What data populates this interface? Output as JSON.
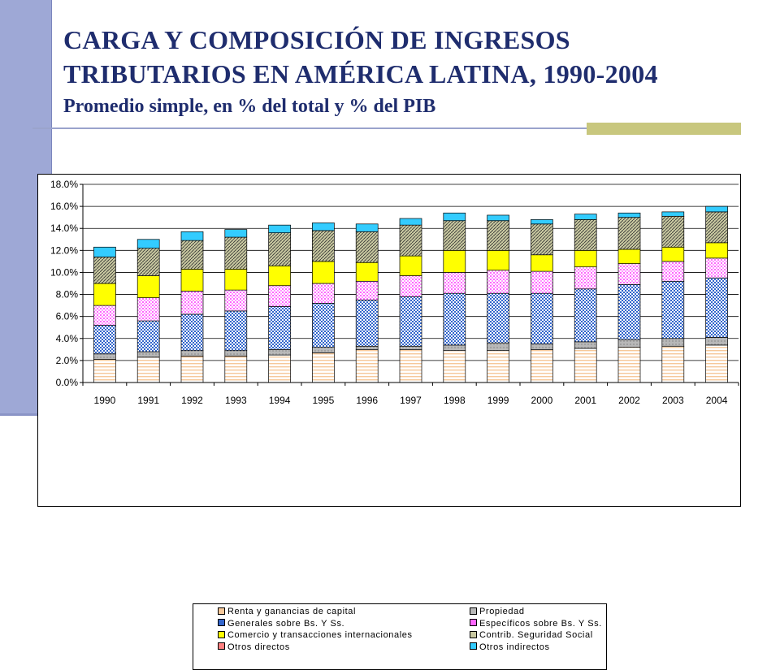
{
  "slide": {
    "title_line1": "CARGA Y COMPOSICIÓN DE INGRESOS",
    "title_line2": "TRIBUTARIOS EN AMÉRICA LATINA, 1990-2004",
    "subtitle": "Promedio simple, en % del total y % del PIB"
  },
  "colors": {
    "left_bar": "#9ea8d6",
    "title": "#1f2d6e",
    "renta": "#f6c89a",
    "propiedad": "#b8b8b8",
    "generales": "#3366cc",
    "especificos": "#ff66ff",
    "comercio": "#ffff00",
    "seguridad": "#c8c8a0",
    "otros_directos": "#ff8080",
    "otros_indirectos": "#33ccff"
  },
  "chart_data": {
    "type": "bar",
    "stacked": true,
    "title": "",
    "xlabel": "",
    "ylabel": "",
    "ylim": [
      0,
      18
    ],
    "y_ticks": [
      "0.0%",
      "2.0%",
      "4.0%",
      "6.0%",
      "8.0%",
      "10.0%",
      "12.0%",
      "14.0%",
      "16.0%",
      "18.0%"
    ],
    "categories": [
      "1990",
      "1991",
      "1992",
      "1993",
      "1994",
      "1995",
      "1996",
      "1997",
      "1998",
      "1999",
      "2000",
      "2001",
      "2002",
      "2003",
      "2004"
    ],
    "legend_position": "bottom",
    "series": [
      {
        "name": "Renta y ganancias de capital",
        "key": "renta",
        "values": [
          2.1,
          2.3,
          2.4,
          2.4,
          2.5,
          2.7,
          3.0,
          3.0,
          2.9,
          2.9,
          3.0,
          3.1,
          3.2,
          3.3,
          3.4
        ]
      },
      {
        "name": "Otros directos",
        "key": "otros_directos",
        "values": [
          0.0,
          0.0,
          0.0,
          0.0,
          0.0,
          0.0,
          0.0,
          0.0,
          0.0,
          0.0,
          0.0,
          0.0,
          0.0,
          0.0,
          0.0
        ]
      },
      {
        "name": "Propiedad",
        "key": "propiedad",
        "values": [
          0.5,
          0.5,
          0.5,
          0.5,
          0.5,
          0.5,
          0.3,
          0.3,
          0.5,
          0.7,
          0.5,
          0.6,
          0.7,
          0.7,
          0.7
        ]
      },
      {
        "name": "Generales sobre Bs. Y Ss.",
        "key": "generales",
        "values": [
          2.6,
          2.8,
          3.3,
          3.6,
          3.9,
          4.0,
          4.2,
          4.5,
          4.7,
          4.5,
          4.6,
          4.8,
          5.0,
          5.2,
          5.4
        ]
      },
      {
        "name": "Específicos sobre Bs. Y Ss.",
        "key": "especificos",
        "values": [
          1.8,
          2.1,
          2.1,
          1.9,
          1.9,
          1.8,
          1.7,
          1.9,
          1.9,
          2.1,
          2.0,
          2.0,
          1.9,
          1.8,
          1.8
        ]
      },
      {
        "name": "Comercio y transacciones internacionales",
        "key": "comercio",
        "values": [
          2.0,
          2.0,
          2.0,
          1.9,
          1.8,
          2.0,
          1.7,
          1.8,
          2.0,
          1.8,
          1.5,
          1.5,
          1.3,
          1.3,
          1.4
        ]
      },
      {
        "name": "Contrib. Seguridad Social",
        "key": "seguridad",
        "values": [
          2.4,
          2.5,
          2.6,
          2.9,
          3.0,
          2.8,
          2.8,
          2.8,
          2.7,
          2.7,
          2.8,
          2.8,
          2.9,
          2.8,
          2.8
        ]
      },
      {
        "name": "Otros indirectos",
        "key": "otros_indirectos",
        "values": [
          0.9,
          0.8,
          0.8,
          0.7,
          0.7,
          0.7,
          0.7,
          0.6,
          0.7,
          0.5,
          0.4,
          0.5,
          0.4,
          0.4,
          0.5
        ]
      }
    ]
  },
  "legend": {
    "items": [
      {
        "label": "Renta y ganancias de capital",
        "key": "renta"
      },
      {
        "label": "Propiedad",
        "key": "propiedad"
      },
      {
        "label": "Generales sobre Bs. Y Ss.",
        "key": "generales"
      },
      {
        "label": "Específicos sobre Bs. Y Ss.",
        "key": "especificos"
      },
      {
        "label": "Comercio y transacciones internacionales",
        "key": "comercio"
      },
      {
        "label": "Contrib. Seguridad Social",
        "key": "seguridad"
      },
      {
        "label": "Otros directos",
        "key": "otros_directos"
      },
      {
        "label": "Otros indirectos",
        "key": "otros_indirectos"
      }
    ]
  }
}
